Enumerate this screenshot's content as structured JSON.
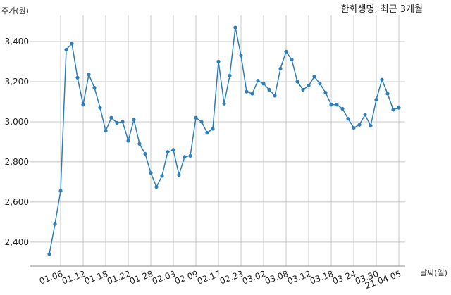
{
  "chart_data": {
    "type": "line",
    "title": "한화생명, 최근 3개월",
    "ylabel": "주가(원)",
    "xlabel": "날짜(일)",
    "ylim": [
      2280,
      3530
    ],
    "yticks": [
      2400,
      2600,
      2800,
      3000,
      3200,
      3400
    ],
    "ytick_labels": [
      "2,400",
      "2,600",
      "2,800",
      "3,000",
      "3,200",
      "3,400"
    ],
    "grid": true,
    "series": [
      {
        "color": "#2e7fb8",
        "x": [
          "01.04",
          "01.05",
          "01.06",
          "01.07",
          "01.08",
          "01.11",
          "01.12",
          "01.13",
          "01.14",
          "01.15",
          "01.18",
          "01.19",
          "01.20",
          "01.21",
          "01.22",
          "01.25",
          "01.26",
          "01.27",
          "01.28",
          "01.29",
          "02.01",
          "02.02",
          "02.03",
          "02.04",
          "02.05",
          "02.08",
          "02.09",
          "02.10",
          "02.15",
          "02.16",
          "02.17",
          "02.18",
          "02.19",
          "02.22",
          "02.23",
          "02.24",
          "02.25",
          "02.26",
          "03.02",
          "03.03",
          "03.04",
          "03.05",
          "03.08",
          "03.09",
          "03.10",
          "03.11",
          "03.12",
          "03.15",
          "03.16",
          "03.17",
          "03.18",
          "03.19",
          "03.22",
          "03.23",
          "03.24",
          "03.25",
          "03.26",
          "03.29",
          "03.30",
          "03.31",
          "04.01",
          "04.02",
          "21.04.05"
        ],
        "values": [
          2340,
          2490,
          2655,
          3360,
          3390,
          3220,
          3085,
          3235,
          3170,
          3070,
          2955,
          3020,
          2995,
          3000,
          2905,
          3010,
          2890,
          2840,
          2745,
          2675,
          2730,
          2850,
          2860,
          2735,
          2825,
          2830,
          3020,
          3000,
          2945,
          2965,
          3300,
          3090,
          3230,
          3470,
          3330,
          3150,
          3140,
          3205,
          3190,
          3160,
          3130,
          3265,
          3350,
          3310,
          3200,
          3160,
          3180,
          3225,
          3190,
          3145,
          3085,
          3085,
          3065,
          3015,
          2970,
          2985,
          3035,
          2980,
          3110,
          3210,
          3140,
          3060,
          3070
        ]
      }
    ],
    "xtick_labels": [
      "01.06",
      "01.12",
      "01.18",
      "01.22",
      "01.28",
      "02.03",
      "02.09",
      "02.17",
      "02.23",
      "03.02",
      "03.08",
      "03.12",
      "03.18",
      "03.24",
      "03.30",
      "21.04.05"
    ],
    "xtick_indices": [
      2,
      6,
      10,
      14,
      18,
      22,
      26,
      30,
      34,
      38,
      42,
      46,
      50,
      54,
      58,
      62
    ]
  }
}
